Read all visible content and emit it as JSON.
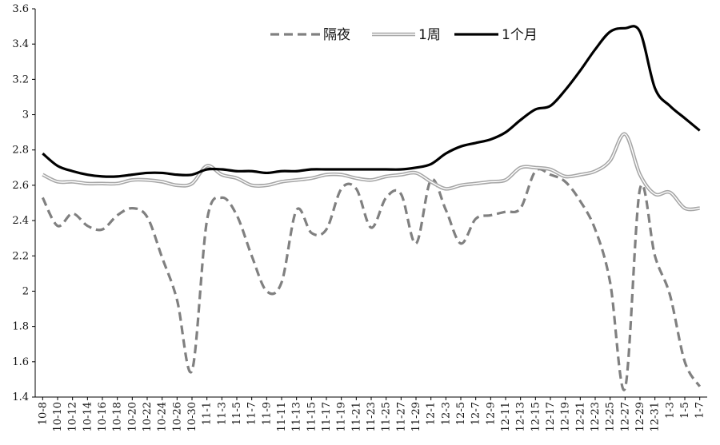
{
  "chart_data": {
    "type": "line",
    "title": "",
    "xlabel": "",
    "ylabel": "",
    "ylim": [
      1.4,
      3.6
    ],
    "yticks": [
      1.4,
      1.6,
      1.8,
      2,
      2.2,
      2.4,
      2.6,
      2.8,
      3,
      3.2,
      3.4,
      3.6
    ],
    "ytick_labels": [
      "1.4",
      "1.6",
      "1.8",
      "2",
      "2.2",
      "2.4",
      "2.6",
      "2.8",
      "3",
      "3.2",
      "3.4",
      "3.6"
    ],
    "grid": false,
    "legend": "top-center",
    "x_labels": [
      "10-8",
      "10-10",
      "10-12",
      "10-14",
      "10-16",
      "10-18",
      "10-20",
      "10-22",
      "10-24",
      "10-26",
      "10-30",
      "11-1",
      "11-3",
      "11-5",
      "11-7",
      "11-9",
      "11-11",
      "11-13",
      "11-15",
      "11-17",
      "11-19",
      "11-21",
      "11-23",
      "11-25",
      "11-27",
      "11-29",
      "12-1",
      "12-3",
      "12-5",
      "12-7",
      "12-9",
      "12-11",
      "12-13",
      "12-15",
      "12-17",
      "12-19",
      "12-21",
      "12-23",
      "12-25",
      "12-27",
      "12-29",
      "12-31",
      "1-3",
      "1-5",
      "1-7"
    ],
    "series": [
      {
        "name": "隔夜",
        "style": "dashed",
        "color": "#808080",
        "values": [
          2.53,
          2.37,
          2.44,
          2.37,
          2.35,
          2.43,
          2.47,
          2.42,
          2.19,
          1.95,
          1.55,
          2.4,
          2.53,
          2.43,
          2.2,
          2.0,
          2.05,
          2.46,
          2.33,
          2.35,
          2.58,
          2.58,
          2.36,
          2.53,
          2.55,
          2.27,
          2.63,
          2.46,
          2.27,
          2.41,
          2.43,
          2.45,
          2.47,
          2.68,
          2.66,
          2.62,
          2.51,
          2.35,
          2.05,
          1.45,
          2.58,
          2.2,
          1.98,
          1.6,
          1.46
        ]
      },
      {
        "name": "1周",
        "style": "double-gray",
        "color": "#a6a6a6",
        "values": [
          2.66,
          2.62,
          2.62,
          2.61,
          2.61,
          2.61,
          2.63,
          2.63,
          2.62,
          2.6,
          2.61,
          2.71,
          2.66,
          2.64,
          2.6,
          2.6,
          2.62,
          2.63,
          2.64,
          2.66,
          2.66,
          2.64,
          2.63,
          2.65,
          2.66,
          2.67,
          2.62,
          2.58,
          2.6,
          2.61,
          2.62,
          2.63,
          2.7,
          2.7,
          2.69,
          2.65,
          2.66,
          2.68,
          2.74,
          2.89,
          2.66,
          2.55,
          2.56,
          2.47,
          2.47
        ]
      },
      {
        "name": "1个月",
        "style": "solid",
        "color": "#000000",
        "values": [
          2.78,
          2.71,
          2.68,
          2.66,
          2.65,
          2.65,
          2.66,
          2.67,
          2.67,
          2.66,
          2.66,
          2.69,
          2.69,
          2.68,
          2.68,
          2.67,
          2.68,
          2.68,
          2.69,
          2.69,
          2.69,
          2.69,
          2.69,
          2.69,
          2.69,
          2.7,
          2.72,
          2.78,
          2.82,
          2.84,
          2.86,
          2.9,
          2.97,
          3.03,
          3.05,
          3.14,
          3.25,
          3.37,
          3.47,
          3.49,
          3.47,
          3.15,
          3.05,
          2.98,
          2.91
        ]
      }
    ]
  }
}
